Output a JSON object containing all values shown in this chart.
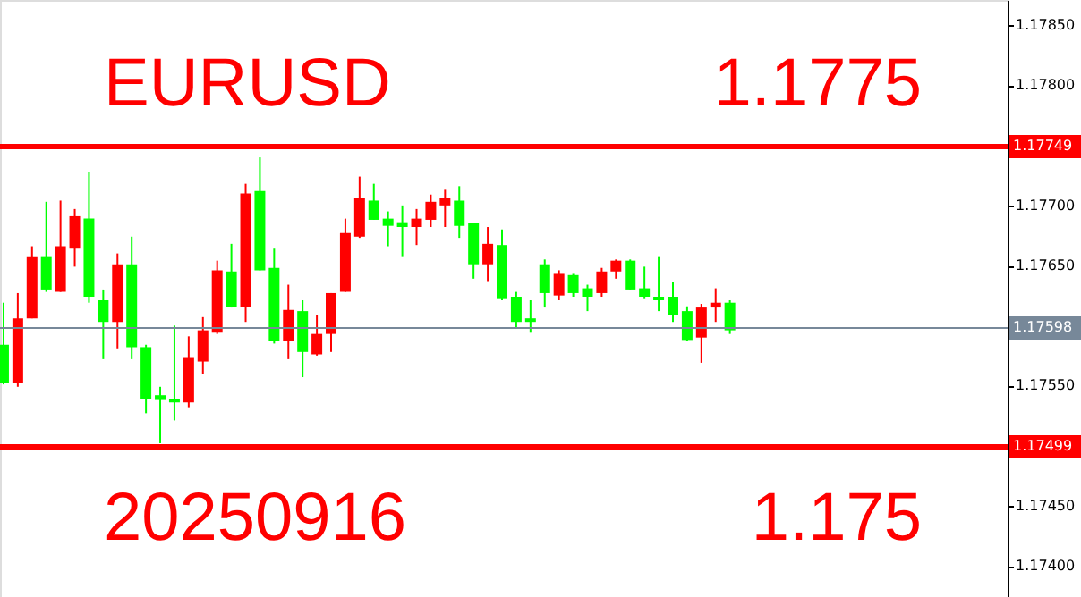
{
  "chart_data": {
    "type": "candlestick",
    "categories": [
      null,
      null,
      null,
      null,
      null,
      null,
      null,
      null,
      null,
      null,
      null,
      null,
      null,
      null,
      null,
      null,
      null,
      null,
      null,
      null,
      null,
      null,
      null,
      null,
      null,
      null,
      null,
      null,
      null,
      null,
      null,
      null,
      null,
      null,
      null,
      null,
      null,
      null,
      null,
      null,
      null,
      null,
      null,
      null,
      null,
      null,
      null,
      null,
      null,
      null,
      null,
      null,
      null,
      null,
      null,
      null,
      null,
      null,
      null,
      null,
      null,
      null,
      null,
      null,
      null,
      null,
      null,
      null,
      null,
      null,
      null
    ],
    "ohlc": [
      [
        1.17584,
        1.17619,
        1.17551,
        1.17552
      ],
      [
        1.17552,
        1.17627,
        1.17549,
        1.17606
      ],
      [
        1.17606,
        1.17666,
        1.17606,
        1.17657
      ],
      [
        1.17657,
        1.17703,
        1.17628,
        1.1763
      ],
      [
        1.17628,
        1.17704,
        1.17628,
        1.17666
      ],
      [
        1.17664,
        1.17697,
        1.17649,
        1.17691
      ],
      [
        1.17689,
        1.17728,
        1.17619,
        1.17624
      ],
      [
        1.17621,
        1.1763,
        1.17572,
        1.17603
      ],
      [
        1.17603,
        1.1766,
        1.17581,
        1.17651
      ],
      [
        1.17651,
        1.17674,
        1.17572,
        1.17582
      ],
      [
        1.17582,
        1.17584,
        1.17527,
        1.17539
      ],
      [
        1.17542,
        1.17549,
        1.17502,
        1.17538
      ],
      [
        1.17539,
        1.176,
        1.17521,
        1.17536
      ],
      [
        1.17536,
        1.17591,
        1.17532,
        1.17573
      ],
      [
        1.1757,
        1.17607,
        1.1756,
        1.17596
      ],
      [
        1.17594,
        1.17654,
        1.17593,
        1.17646
      ],
      [
        1.17645,
        1.17668,
        1.17615,
        1.17615
      ],
      [
        1.17615,
        1.17718,
        1.17603,
        1.1771
      ],
      [
        1.17712,
        1.1774,
        1.17646,
        1.17646
      ],
      [
        1.17648,
        1.17664,
        1.17585,
        1.17587
      ],
      [
        1.17587,
        1.17634,
        1.17572,
        1.17613
      ],
      [
        1.17612,
        1.17621,
        1.17557,
        1.17578
      ],
      [
        1.17576,
        1.17609,
        1.17575,
        1.17593
      ],
      [
        1.17593,
        1.17627,
        1.17578,
        1.17627
      ],
      [
        1.17628,
        1.17689,
        1.17628,
        1.17677
      ],
      [
        1.17674,
        1.17724,
        1.17673,
        1.17706
      ],
      [
        1.17704,
        1.17718,
        1.17688,
        1.17688
      ],
      [
        1.17689,
        1.17695,
        1.17666,
        1.17683
      ],
      [
        1.17686,
        1.177,
        1.17657,
        1.17682
      ],
      [
        1.17682,
        1.17697,
        1.17667,
        1.17689
      ],
      [
        1.17688,
        1.17709,
        1.17682,
        1.17703
      ],
      [
        1.177,
        1.17713,
        1.17682,
        1.17706
      ],
      [
        1.17704,
        1.17716,
        1.17673,
        1.17683
      ],
      [
        1.17685,
        1.17685,
        1.17639,
        1.17651
      ],
      [
        1.17651,
        1.17682,
        1.17637,
        1.17668
      ],
      [
        1.17667,
        1.1768,
        1.17621,
        1.17622
      ],
      [
        1.17624,
        1.17628,
        1.17598,
        1.17603
      ],
      [
        1.17606,
        1.17621,
        1.17594,
        1.17603
      ],
      [
        1.17651,
        1.17655,
        1.17615,
        1.17627
      ],
      [
        1.17625,
        1.17646,
        1.17621,
        1.17643
      ],
      [
        1.17642,
        1.17643,
        1.17624,
        1.17627
      ],
      [
        1.17631,
        1.17634,
        1.17612,
        1.17624
      ],
      [
        1.17627,
        1.17648,
        1.17624,
        1.17645
      ],
      [
        1.17645,
        1.17655,
        1.17639,
        1.17654
      ],
      [
        1.17654,
        1.17655,
        1.1763,
        1.1763
      ],
      [
        1.17631,
        1.17649,
        1.17622,
        1.17624
      ],
      [
        1.17624,
        1.17657,
        1.17612,
        1.17621
      ],
      [
        1.17624,
        1.17636,
        1.17603,
        1.17609
      ],
      [
        1.17612,
        1.17616,
        1.17587,
        1.17588
      ],
      [
        1.1759,
        1.17618,
        1.17569,
        1.17615
      ],
      [
        1.17615,
        1.17631,
        1.17603,
        1.17619
      ],
      [
        1.17619,
        1.17621,
        1.17593,
        1.17596
      ],
      null,
      null,
      null,
      null,
      null,
      null,
      null,
      null,
      null,
      null,
      null,
      null,
      null,
      null,
      null,
      null,
      null,
      null,
      null
    ],
    "colors": [
      "#00ff00",
      "#ff0000",
      "#ff0000",
      "#00ff00",
      "#ff0000",
      "#ff0000",
      "#00ff00",
      "#00ff00",
      "#ff0000",
      "#00ff00",
      "#00ff00",
      "#00ff00",
      "#00ff00",
      "#ff0000",
      "#ff0000",
      "#ff0000",
      "#00ff00",
      "#ff0000",
      "#00ff00",
      "#00ff00",
      "#ff0000",
      "#00ff00",
      "#ff0000",
      "#ff0000",
      "#ff0000",
      "#ff0000",
      "#00ff00",
      "#00ff00",
      "#00ff00",
      "#ff0000",
      "#ff0000",
      "#ff0000",
      "#00ff00",
      "#00ff00",
      "#ff0000",
      "#00ff00",
      "#00ff00",
      "#00ff00",
      "#00ff00",
      "#ff0000",
      "#00ff00",
      "#00ff00",
      "#ff0000",
      "#ff0000",
      "#00ff00",
      "#00ff00",
      "#00ff00",
      "#00ff00",
      "#00ff00",
      "#ff0000",
      "#ff0000",
      "#00ff00",
      null,
      null,
      null,
      null,
      null,
      null,
      null,
      null,
      null,
      null,
      null,
      null,
      null,
      null,
      null,
      null,
      null,
      null,
      null
    ],
    "ylim": [
      1.17374,
      1.17871
    ],
    "yticks": [
      {
        "value": 1.174,
        "label": "1.17400"
      },
      {
        "value": 1.1745,
        "label": "1.17450"
      },
      {
        "value": 1.1755,
        "label": "1.17550"
      },
      {
        "value": 1.1765,
        "label": "1.17650"
      },
      {
        "value": 1.177,
        "label": "1.17700"
      },
      {
        "value": 1.178,
        "label": "1.17800"
      },
      {
        "value": 1.1785,
        "label": "1.17850"
      }
    ],
    "ref_lines": [
      {
        "axis": "y",
        "value": 1.17749,
        "label": "1.17749",
        "color": "#ff0000"
      },
      {
        "axis": "y",
        "value": 1.17598,
        "label": "1.17598",
        "color": "#778899"
      },
      {
        "axis": "y",
        "value": 1.17499,
        "label": "1.17499",
        "color": "#ff0000"
      }
    ],
    "annotations": [
      "EURUSD",
      "1.1775",
      "20250916",
      "1.175"
    ],
    "grid": false,
    "tick_labels": "y"
  }
}
